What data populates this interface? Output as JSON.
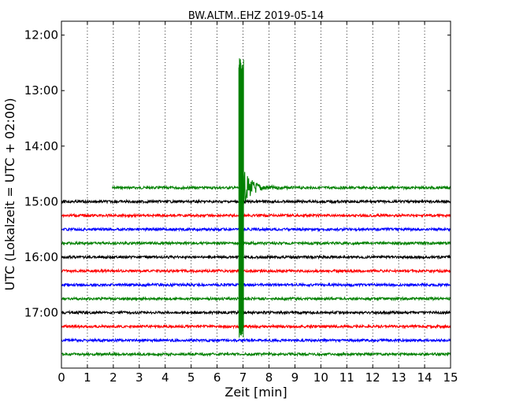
{
  "chart_data": {
    "type": "line",
    "title": "BW.ALTM..EHZ 2019-05-14",
    "xlabel": "Zeit  [min]",
    "ylabel": "UTC (Lokalzeit = UTC + 02:00)",
    "xlim": [
      0,
      15
    ],
    "x_ticks": [
      0,
      1,
      2,
      3,
      4,
      5,
      6,
      7,
      8,
      9,
      10,
      11,
      12,
      13,
      14,
      15
    ],
    "ylim": [
      "11:45",
      "18:00"
    ],
    "y_ticks": [
      "12:00",
      "13:00",
      "14:00",
      "15:00",
      "16:00",
      "17:00"
    ],
    "y_axis_inverted": true,
    "grid": "vertical dotted at each minute",
    "colors": {
      "green": "#008000",
      "black": "#000000",
      "red": "#ff0000",
      "blue": "#0000ff"
    },
    "traces": [
      {
        "start": "14:45",
        "color": "green",
        "x_start": 1.95
      },
      {
        "start": "15:00",
        "color": "black"
      },
      {
        "start": "15:15",
        "color": "red"
      },
      {
        "start": "15:30",
        "color": "blue"
      },
      {
        "start": "15:45",
        "color": "green"
      },
      {
        "start": "16:00",
        "color": "black"
      },
      {
        "start": "16:15",
        "color": "red"
      },
      {
        "start": "16:30",
        "color": "blue"
      },
      {
        "start": "16:45",
        "color": "green"
      },
      {
        "start": "17:00",
        "color": "black"
      },
      {
        "start": "17:15",
        "color": "red"
      },
      {
        "start": "17:30",
        "color": "blue"
      },
      {
        "start": "17:45",
        "color": "green"
      }
    ],
    "events": [
      {
        "x_min": 6.9,
        "trace": "14:45",
        "up_to": "12:25",
        "down_to": "17:27"
      }
    ]
  }
}
